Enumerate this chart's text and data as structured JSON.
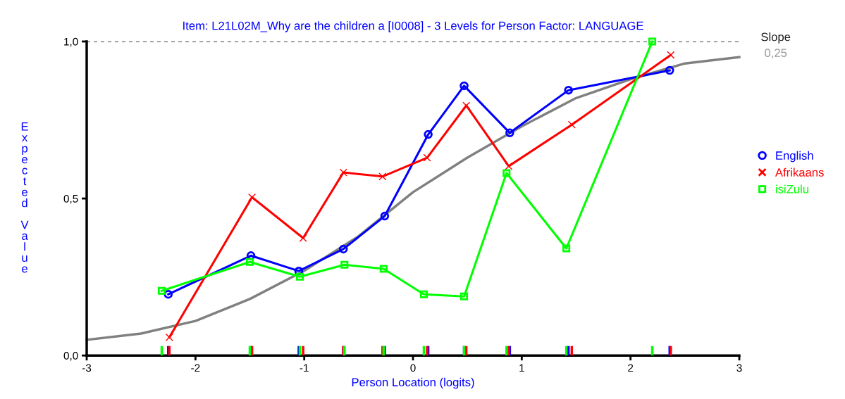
{
  "chart_data": {
    "type": "line",
    "title": "Item: L21L02M_Why are the children a [I0008] - 3 Levels for Person Factor: LANGUAGE",
    "xlabel": "Person Location (logits)",
    "ylabel": "Expected Value",
    "xlim": [
      -3,
      3
    ],
    "xticks": [
      -3,
      -2,
      -1,
      0,
      1,
      2,
      3
    ],
    "ylim": [
      0,
      1
    ],
    "yticks": [
      {
        "value": 0,
        "label": "0,0"
      },
      {
        "value": 0.5,
        "label": "0,5"
      },
      {
        "value": 1,
        "label": "1,0"
      }
    ],
    "grid": false,
    "legend": "right",
    "ref_lines": [
      {
        "axis": "y",
        "value": 1,
        "color": "#000000",
        "line_style": "dashed"
      }
    ],
    "annotations": [
      "Slope",
      "0,25"
    ],
    "series": [
      {
        "type": "line",
        "color": "#808080",
        "marker": "none",
        "x": [
          -3,
          -2.5,
          -2,
          -1.5,
          -1,
          -0.5,
          0,
          0.5,
          1,
          1.5,
          2,
          2.5,
          3
        ],
        "values": [
          0.05,
          0.07,
          0.11,
          0.18,
          0.27,
          0.38,
          0.52,
          0.63,
          0.73,
          0.82,
          0.88,
          0.93,
          0.95
        ]
      },
      {
        "name": "English",
        "color": "#0000ff",
        "marker": "circle",
        "x": [
          -2.25,
          -1.49,
          -1.05,
          -0.64,
          -0.26,
          0.14,
          0.47,
          0.89,
          1.43,
          2.36
        ],
        "values": [
          0.195,
          0.318,
          0.269,
          0.339,
          0.444,
          0.704,
          0.859,
          0.709,
          0.845,
          0.908
        ]
      },
      {
        "name": "Afrikaans",
        "color": "#ff0000",
        "marker": "cross",
        "x": [
          -2.24,
          -1.48,
          -1.01,
          -0.64,
          -0.28,
          0.13,
          0.49,
          0.88,
          1.46,
          2.37
        ],
        "values": [
          0.058,
          0.504,
          0.374,
          0.583,
          0.57,
          0.63,
          0.796,
          0.603,
          0.735,
          0.957
        ]
      },
      {
        "name": "isiZulu",
        "color": "#00ff00",
        "marker": "square",
        "x": [
          -2.31,
          -1.5,
          -1.04,
          -0.63,
          -0.27,
          0.1,
          0.47,
          0.86,
          1.41,
          2.2
        ],
        "values": [
          0.206,
          0.298,
          0.251,
          0.289,
          0.276,
          0.195,
          0.188,
          0.581,
          0.341,
          1.0
        ]
      }
    ]
  }
}
